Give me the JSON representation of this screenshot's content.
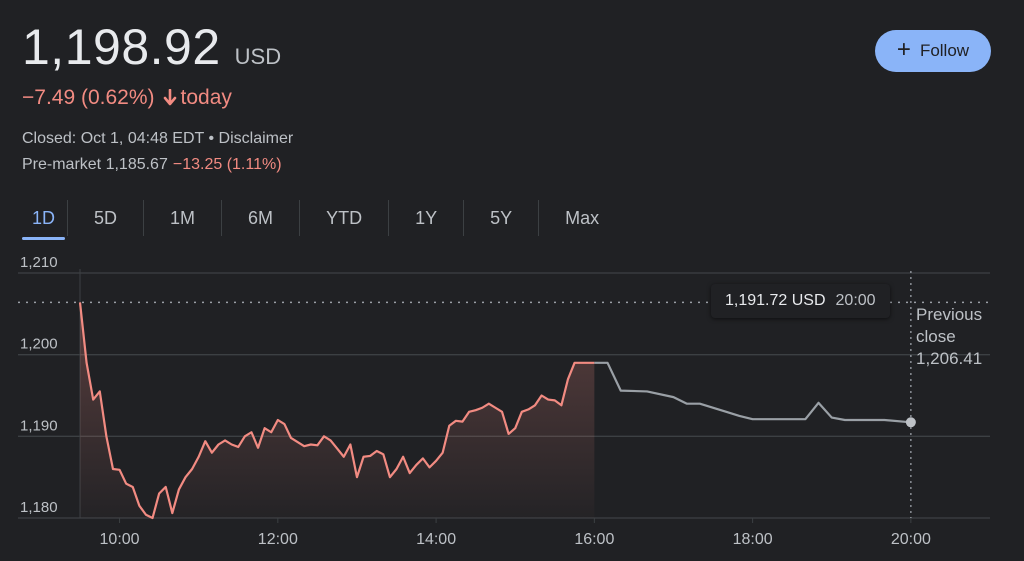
{
  "quote": {
    "price": "1,198.92",
    "currency": "USD",
    "change": "−7.49 (0.62%)",
    "direction": "today",
    "closed_text": "Closed: Oct 1, 04:48 EDT",
    "separator": "•",
    "disclaimer": "Disclaimer",
    "premarket_label": "Pre-market 1,185.67",
    "premarket_change": "−13.25 (1.11%)"
  },
  "follow": {
    "icon": "plus-icon",
    "label": "Follow"
  },
  "tabs": [
    {
      "label": "1D",
      "active": true
    },
    {
      "label": "5D"
    },
    {
      "label": "1M"
    },
    {
      "label": "6M"
    },
    {
      "label": "YTD"
    },
    {
      "label": "1Y"
    },
    {
      "label": "5Y"
    },
    {
      "label": "Max"
    }
  ],
  "tooltip": {
    "price": "1,191.72 USD",
    "time": "20:00"
  },
  "previous_close": {
    "line1": "Previous",
    "line2": "close",
    "value": "1,206.41"
  },
  "colors": {
    "background": "#202124",
    "down": "#f28b82",
    "afterhours": "#9aa0a6",
    "accent": "#8ab4f8",
    "grid": "#3c4043"
  },
  "chart_data": {
    "type": "line",
    "x_ticks": [
      "10:00",
      "12:00",
      "14:00",
      "16:00",
      "18:00",
      "20:00"
    ],
    "y_ticks": [
      "1,180",
      "1,190",
      "1,200",
      "1,210"
    ],
    "y_tick_values": [
      1180,
      1190,
      1200,
      1210
    ],
    "ylim": [
      1180,
      1210
    ],
    "xlim": [
      "09:30",
      "21:00"
    ],
    "previous_close": 1206.41,
    "grid": true,
    "series": [
      {
        "segment": "regular",
        "x": [
          "09:30",
          "09:35",
          "09:40",
          "09:45",
          "09:50",
          "09:55",
          "10:00",
          "10:05",
          "10:10",
          "10:15",
          "10:20",
          "10:25",
          "10:30",
          "10:35",
          "10:40",
          "10:45",
          "10:50",
          "10:55",
          "11:00",
          "11:05",
          "11:10",
          "11:15",
          "11:20",
          "11:25",
          "11:30",
          "11:35",
          "11:40",
          "11:45",
          "11:50",
          "11:55",
          "12:00",
          "12:05",
          "12:10",
          "12:15",
          "12:20",
          "12:25",
          "12:30",
          "12:35",
          "12:40",
          "12:45",
          "12:50",
          "12:55",
          "13:00",
          "13:05",
          "13:10",
          "13:15",
          "13:20",
          "13:25",
          "13:30",
          "13:35",
          "13:40",
          "13:45",
          "13:50",
          "13:55",
          "14:00",
          "14:05",
          "14:10",
          "14:15",
          "14:20",
          "14:25",
          "14:30",
          "14:35",
          "14:40",
          "14:45",
          "14:50",
          "14:55",
          "15:00",
          "15:05",
          "15:10",
          "15:15",
          "15:20",
          "15:25",
          "15:30",
          "15:35",
          "15:40",
          "15:45",
          "15:50",
          "15:55",
          "16:00"
        ],
        "y": [
          1206.4,
          1199.0,
          1194.5,
          1195.5,
          1190.0,
          1186.0,
          1185.9,
          1184.2,
          1183.8,
          1181.5,
          1180.4,
          1180.0,
          1183.0,
          1183.8,
          1180.6,
          1183.5,
          1185.0,
          1186.0,
          1187.5,
          1189.4,
          1188.0,
          1189.0,
          1189.5,
          1189.0,
          1188.7,
          1190.0,
          1190.5,
          1188.6,
          1191.0,
          1190.5,
          1192.0,
          1191.5,
          1189.8,
          1189.3,
          1188.8,
          1189.0,
          1188.9,
          1190.0,
          1189.5,
          1188.5,
          1187.5,
          1189.0,
          1185.0,
          1187.5,
          1187.6,
          1188.2,
          1187.8,
          1185.0,
          1186.0,
          1187.5,
          1185.5,
          1186.5,
          1187.3,
          1186.2,
          1187.0,
          1188.0,
          1191.3,
          1191.9,
          1191.8,
          1193.0,
          1193.2,
          1193.5,
          1194.0,
          1193.5,
          1193.0,
          1190.3,
          1191.0,
          1193.0,
          1193.3,
          1193.8,
          1195.0,
          1194.5,
          1194.4,
          1193.8,
          1197.0,
          1199.0,
          1199.0,
          1199.0,
          1199.0
        ]
      },
      {
        "segment": "after-hours",
        "x": [
          "16:00",
          "16:10",
          "16:20",
          "16:40",
          "17:00",
          "17:10",
          "17:20",
          "17:40",
          "17:50",
          "18:00",
          "18:20",
          "18:40",
          "18:50",
          "19:00",
          "19:10",
          "19:20",
          "19:40",
          "20:00"
        ],
        "y": [
          1199.0,
          1199.0,
          1195.6,
          1195.5,
          1194.8,
          1194.0,
          1194.0,
          1193.0,
          1192.5,
          1192.1,
          1192.1,
          1192.1,
          1194.1,
          1192.3,
          1192.0,
          1192.0,
          1192.0,
          1191.72
        ]
      }
    ]
  }
}
